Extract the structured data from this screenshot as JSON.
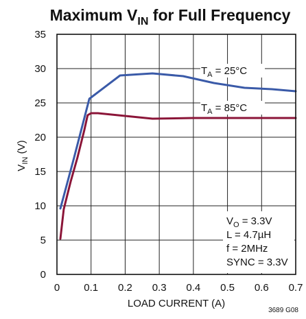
{
  "chart_data": {
    "type": "line",
    "title": {
      "main": "Maximum V",
      "sub": "IN",
      "rest": " for Full Frequency"
    },
    "xlabel": "LOAD CURRENT (A)",
    "ylabel": {
      "main": "V",
      "sub": "IN",
      "rest": " (V)"
    },
    "xlim": [
      0,
      0.7
    ],
    "ylim": [
      0,
      35
    ],
    "xticks": [
      0,
      0.1,
      0.2,
      0.3,
      0.4,
      0.5,
      0.6,
      0.7
    ],
    "xtick_labels": [
      "0",
      "0.1",
      "0.2",
      "0.3",
      "0.4",
      "0.5",
      "0.6",
      "0.7"
    ],
    "yticks": [
      0,
      5,
      10,
      15,
      20,
      25,
      30,
      35
    ],
    "ytick_labels": [
      "0",
      "5",
      "10",
      "15",
      "20",
      "25",
      "30",
      "35"
    ],
    "grid": true,
    "series": [
      {
        "label": {
          "main": "T",
          "sub": "A",
          "rest": " = 25°C"
        },
        "color": "#3a5aa8",
        "points": [
          [
            0.01,
            9.6
          ],
          [
            0.05,
            17.0
          ],
          [
            0.095,
            25.6
          ],
          [
            0.185,
            29.0
          ],
          [
            0.28,
            29.3
          ],
          [
            0.37,
            28.9
          ],
          [
            0.46,
            27.9
          ],
          [
            0.55,
            27.2
          ],
          [
            0.63,
            27.0
          ],
          [
            0.7,
            26.7
          ]
        ]
      },
      {
        "label": {
          "main": "T",
          "sub": "A",
          "rest": " = 85°C"
        },
        "color": "#8b1538",
        "points": [
          [
            0.01,
            5.2
          ],
          [
            0.02,
            9.5
          ],
          [
            0.04,
            13.5
          ],
          [
            0.06,
            17.0
          ],
          [
            0.08,
            21.0
          ],
          [
            0.09,
            23.2
          ],
          [
            0.1,
            23.5
          ],
          [
            0.12,
            23.5
          ],
          [
            0.2,
            23.1
          ],
          [
            0.28,
            22.7
          ],
          [
            0.4,
            22.8
          ],
          [
            0.55,
            22.8
          ],
          [
            0.7,
            22.8
          ]
        ]
      }
    ],
    "conditions": [
      {
        "main": "V",
        "sub": "O",
        "rest": " = 3.3V"
      },
      {
        "main": "L = 4.7µH",
        "sub": "",
        "rest": ""
      },
      {
        "main": "f = 2MHz",
        "sub": "",
        "rest": ""
      },
      {
        "main": "SYNC = 3.3V",
        "sub": "",
        "rest": ""
      }
    ],
    "figure_id": "3689 G08"
  }
}
